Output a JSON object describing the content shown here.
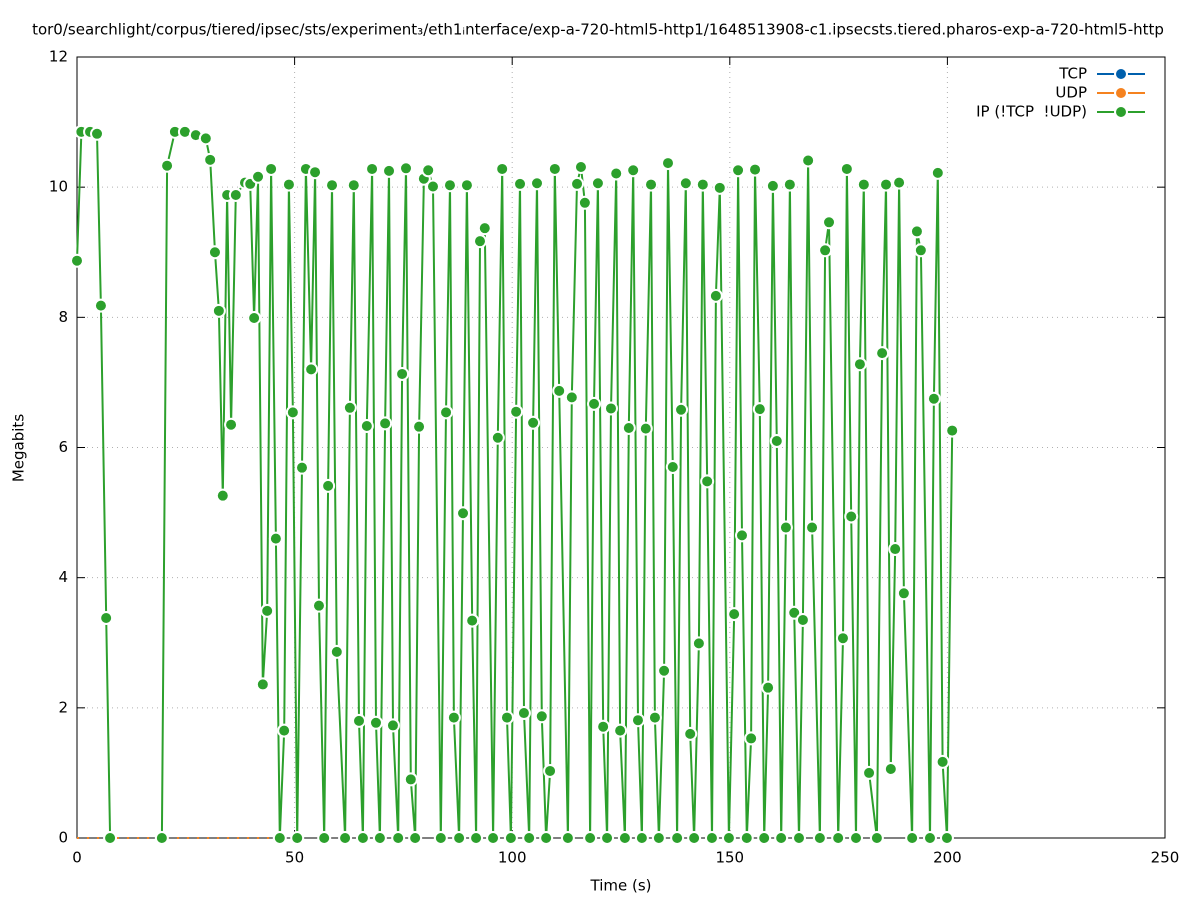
{
  "chart_data": {
    "type": "line",
    "title": "tor0/searchlight/corpus/tiered/ipsec/sts/experiment₃/eth1ᵢnterface/exp-a-720-html5-http1/1648513908-c1.ipsecsts.tiered.pharos-exp-a-720-html5-http",
    "xlabel": "Time (s)",
    "ylabel": "Megabits",
    "xlim": [
      0,
      250
    ],
    "xticks": [
      0,
      50,
      100,
      150,
      200,
      250
    ],
    "ylim": [
      0,
      12
    ],
    "yticks": [
      0,
      2,
      4,
      6,
      8,
      10,
      12
    ],
    "grid": true,
    "legend": "top-right",
    "series": [
      {
        "name": "TCP",
        "color": "#0060ad",
        "x": [
          0,
          46
        ],
        "values": [
          0,
          0
        ]
      },
      {
        "name": "UDP",
        "color": "#f5821f",
        "x": [
          0,
          46
        ],
        "values": [
          0,
          0
        ]
      },
      {
        "name": "IP (!TCP  !UDP)",
        "color": "#2ca02c",
        "x": [
          0,
          1,
          3,
          4.6,
          5.5,
          6.7,
          7.6,
          13,
          19.5,
          20.7,
          22.5,
          24.8,
          27.3,
          29.6,
          30.6,
          31.7,
          32.6,
          33.5,
          34.5,
          35.4,
          36.5,
          38.6,
          39.8,
          40.7,
          41.6,
          42.7,
          43.7,
          44.6,
          45.7,
          46.6,
          47.6,
          48.7,
          49.6,
          50.6,
          51.7,
          52.6,
          53.8,
          54.7,
          55.6,
          56.8,
          57.7,
          58.6,
          59.7,
          61.6,
          62.7,
          63.6,
          64.8,
          65.7,
          66.6,
          67.8,
          68.7,
          69.6,
          70.8,
          71.7,
          72.6,
          73.8,
          74.7,
          75.6,
          76.7,
          77.7,
          78.6,
          79.7,
          80.7,
          81.8,
          83.6,
          84.8,
          85.7,
          86.6,
          87.8,
          88.7,
          89.6,
          90.8,
          91.7,
          92.6,
          93.7,
          95.6,
          96.7,
          97.7,
          98.8,
          99.7,
          100.9,
          101.8,
          102.7,
          103.9,
          104.8,
          105.7,
          106.8,
          107.8,
          108.7,
          109.8,
          110.8,
          112.8,
          113.7,
          114.9,
          115.8,
          116.7,
          117.9,
          118.8,
          119.7,
          120.9,
          121.8,
          122.7,
          123.9,
          124.8,
          125.9,
          126.8,
          127.8,
          128.9,
          129.8,
          130.7,
          131.9,
          132.8,
          133.7,
          134.9,
          135.8,
          136.9,
          137.9,
          138.8,
          139.9,
          140.9,
          141.8,
          142.9,
          143.8,
          144.8,
          145.9,
          146.8,
          147.7,
          149.8,
          151,
          151.9,
          152.8,
          153.9,
          154.9,
          155.8,
          156.9,
          157.9,
          158.8,
          159.9,
          160.8,
          161.8,
          162.9,
          163.8,
          164.8,
          165.9,
          166.8,
          168,
          168.9,
          170.7,
          171.9,
          172.8,
          174.9,
          176,
          176.9,
          177.9,
          179,
          179.9,
          180.8,
          182,
          183.8,
          185,
          185.9,
          187,
          188,
          188.9,
          190,
          191.9,
          193,
          193.9,
          196,
          196.9,
          197.8,
          198.9,
          199.9,
          201.1
        ],
        "values": [
          8.87,
          10.85,
          10.85,
          10.82,
          8.18,
          3.38,
          0,
          null,
          0,
          10.33,
          10.85,
          10.85,
          10.8,
          10.75,
          10.42,
          9.0,
          8.1,
          5.26,
          9.88,
          6.35,
          9.88,
          10.07,
          10.05,
          7.99,
          10.16,
          2.36,
          3.49,
          10.28,
          4.6,
          0,
          1.65,
          10.04,
          6.54,
          0,
          5.69,
          10.28,
          7.2,
          10.23,
          3.57,
          0,
          5.41,
          10.03,
          2.86,
          0,
          6.61,
          10.03,
          1.8,
          0,
          6.33,
          10.28,
          1.77,
          0,
          6.37,
          10.25,
          1.73,
          0,
          7.13,
          10.29,
          0.9,
          0,
          6.32,
          10.13,
          10.26,
          10.01,
          0,
          6.54,
          10.03,
          1.85,
          0,
          4.99,
          10.03,
          3.34,
          0,
          9.17,
          9.37,
          0,
          6.15,
          10.28,
          1.85,
          0,
          6.55,
          10.05,
          1.92,
          0,
          6.38,
          10.06,
          1.87,
          0,
          1.03,
          10.28,
          6.87,
          0,
          6.77,
          10.05,
          10.31,
          9.76,
          0,
          6.67,
          10.06,
          1.71,
          0,
          6.6,
          10.21,
          1.65,
          0,
          6.3,
          10.26,
          1.81,
          0,
          6.29,
          10.04,
          1.85,
          0,
          2.57,
          10.37,
          5.7,
          0,
          6.58,
          10.06,
          1.6,
          0,
          2.99,
          10.04,
          5.48,
          0,
          8.33,
          9.99,
          0,
          3.44,
          10.26,
          4.65,
          0,
          1.53,
          10.27,
          6.59,
          0,
          2.31,
          10.02,
          6.1,
          0,
          4.77,
          10.04,
          3.46,
          0,
          3.35,
          10.41,
          4.77,
          0,
          9.03,
          9.46,
          0,
          3.07,
          10.28,
          4.94,
          0,
          7.28,
          10.04,
          1.0,
          0,
          7.45,
          10.04,
          1.06,
          4.44,
          10.07,
          3.76,
          0,
          9.32,
          9.03,
          0,
          6.75,
          10.22,
          1.17,
          0,
          6.26
        ]
      }
    ]
  }
}
